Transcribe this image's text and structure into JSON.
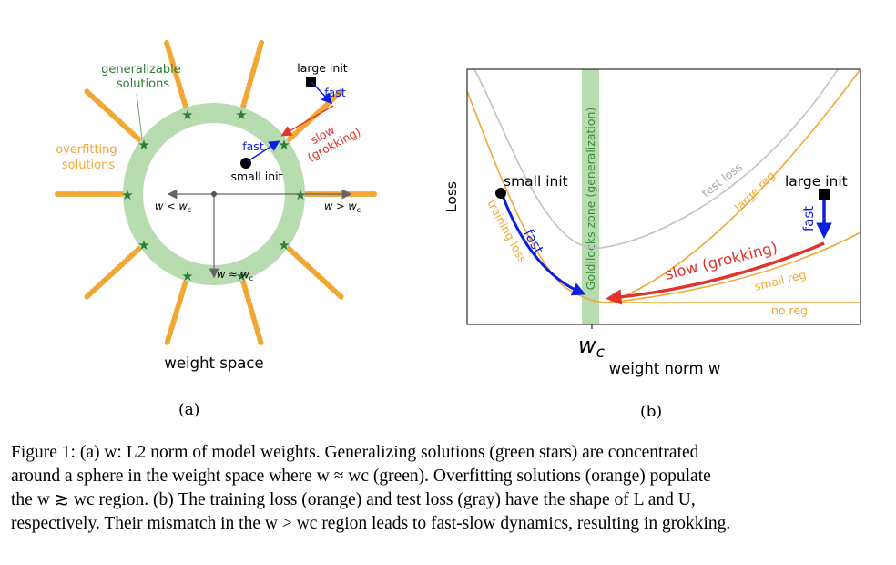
{
  "panel_a": {
    "label_generalizable": [
      "generalizable",
      "solutions"
    ],
    "label_overfitting": [
      "overfitting",
      "solutions"
    ],
    "label_large_init": "large init",
    "label_fast_outer": "fast",
    "label_slow": [
      "slow",
      "(grokking)"
    ],
    "label_fast_inner": "fast",
    "label_small_init": "small init",
    "label_w_less": "w < w",
    "label_w_greater": "w > w",
    "label_w_approx": "w ≈ w",
    "subscript_c": "c",
    "axis_title": "weight space",
    "sublabel": "(a)"
  },
  "panel_b": {
    "ylabel": "Loss",
    "xtick_main": "w",
    "xtick_sub": "c",
    "xlabel": "weight norm w",
    "zone_label": "Goldilocks zone (generalization)",
    "label_small_init": "small init",
    "label_large_init": "large init",
    "label_fast_left": "fast",
    "label_fast_right": "fast",
    "label_slow": "slow (grokking)",
    "label_training_loss": "training loss",
    "label_test_loss": "test loss",
    "label_large_reg": "large reg",
    "label_small_reg": "small reg",
    "label_no_reg": "no reg",
    "sublabel": "(b)"
  },
  "colors": {
    "orange": "#f2a735",
    "green_band": "#b7dcb0",
    "star_green": "#2e7d32",
    "blue": "#0b1fe0",
    "red": "#e0352b",
    "gray": "#c2c2c2"
  },
  "caption": {
    "line1": "Figure 1: (a) w: L2 norm of model weights. Generalizing solutions (green stars) are concentrated",
    "line2": "around a sphere in the weight space where w ≈ wc (green). Overfitting solutions (orange) populate",
    "line3": "the w ≳ wc region. (b) The training loss (orange) and test loss (gray) have the shape of L and U,",
    "line4": "respectively. Their mismatch in the w > wc region leads to fast-slow dynamics, resulting in grokking."
  }
}
